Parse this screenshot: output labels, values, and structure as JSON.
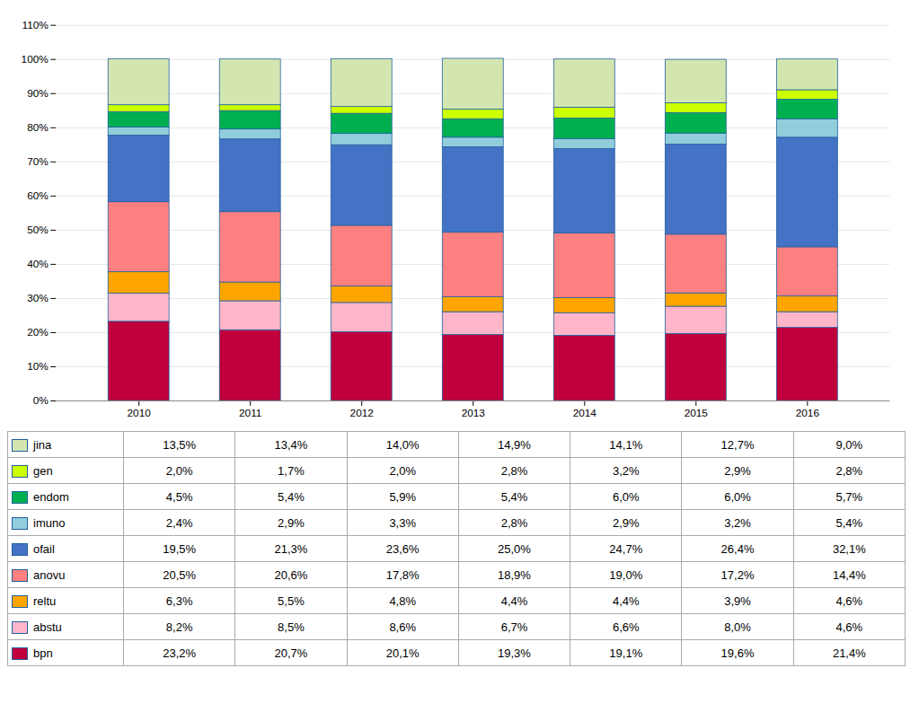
{
  "chart_data": {
    "type": "bar",
    "stacked": true,
    "categories": [
      "2010",
      "2011",
      "2012",
      "2013",
      "2014",
      "2015",
      "2016"
    ],
    "series": [
      {
        "name": "bpn",
        "color": "#C0003C",
        "values": [
          23.2,
          20.7,
          20.1,
          19.3,
          19.1,
          19.6,
          21.4
        ],
        "value_labels": [
          "23,2%",
          "20,7%",
          "20,1%",
          "19,3%",
          "19,1%",
          "19,6%",
          "21,4%"
        ]
      },
      {
        "name": "abstu",
        "color": "#FFB6C8",
        "values": [
          8.2,
          8.5,
          8.6,
          6.7,
          6.6,
          8.0,
          4.6
        ],
        "value_labels": [
          "8,2%",
          "8,5%",
          "8,6%",
          "6,7%",
          "6,6%",
          "8,0%",
          "4,6%"
        ]
      },
      {
        "name": "reltu",
        "color": "#FFA500",
        "values": [
          6.3,
          5.5,
          4.8,
          4.4,
          4.4,
          3.9,
          4.6
        ],
        "value_labels": [
          "6,3%",
          "5,5%",
          "4,8%",
          "4,4%",
          "4,4%",
          "3,9%",
          "4,6%"
        ]
      },
      {
        "name": "anovu",
        "color": "#FF8080",
        "values": [
          20.5,
          20.6,
          17.8,
          18.9,
          19.0,
          17.2,
          14.4
        ],
        "value_labels": [
          "20,5%",
          "20,6%",
          "17,8%",
          "18,9%",
          "19,0%",
          "17,2%",
          "14,4%"
        ]
      },
      {
        "name": "ofail",
        "color": "#4472C4",
        "values": [
          19.5,
          21.3,
          23.6,
          25.0,
          24.7,
          26.4,
          32.1
        ],
        "value_labels": [
          "19,5%",
          "21,3%",
          "23,6%",
          "25,0%",
          "24,7%",
          "26,4%",
          "32,1%"
        ]
      },
      {
        "name": "imuno",
        "color": "#92CDDC",
        "values": [
          2.4,
          2.9,
          3.3,
          2.8,
          2.9,
          3.2,
          5.4
        ],
        "value_labels": [
          "2,4%",
          "2,9%",
          "3,3%",
          "2,8%",
          "2,9%",
          "3,2%",
          "5,4%"
        ]
      },
      {
        "name": "endom",
        "color": "#00B050",
        "values": [
          4.5,
          5.4,
          5.9,
          5.4,
          6.0,
          6.0,
          5.7
        ],
        "value_labels": [
          "4,5%",
          "5,4%",
          "5,9%",
          "5,4%",
          "6,0%",
          "6,0%",
          "5,7%"
        ]
      },
      {
        "name": "gen",
        "color": "#CCFF00",
        "values": [
          2.0,
          1.7,
          2.0,
          2.8,
          3.2,
          2.9,
          2.8
        ],
        "value_labels": [
          "2,0%",
          "1,7%",
          "2,0%",
          "2,8%",
          "3,2%",
          "2,9%",
          "2,8%"
        ]
      },
      {
        "name": "jina",
        "color": "#D4E6B0",
        "values": [
          13.5,
          13.4,
          14.0,
          14.9,
          14.1,
          12.7,
          9.0
        ],
        "value_labels": [
          "13,5%",
          "13,4%",
          "14,0%",
          "14,9%",
          "14,1%",
          "12,7%",
          "9,0%"
        ]
      }
    ],
    "ylim": [
      0,
      110
    ],
    "yticks": [
      {
        "value": 0,
        "label": "0%"
      },
      {
        "value": 10,
        "label": "10%"
      },
      {
        "value": 20,
        "label": "20%"
      },
      {
        "value": 30,
        "label": "30%"
      },
      {
        "value": 40,
        "label": "40%"
      },
      {
        "value": 50,
        "label": "50%"
      },
      {
        "value": 60,
        "label": "60%"
      },
      {
        "value": 70,
        "label": "70%"
      },
      {
        "value": 80,
        "label": "80%"
      },
      {
        "value": 90,
        "label": "90%"
      },
      {
        "value": 100,
        "label": "100%"
      },
      {
        "value": 110,
        "label": "110%"
      }
    ],
    "grid": true
  }
}
